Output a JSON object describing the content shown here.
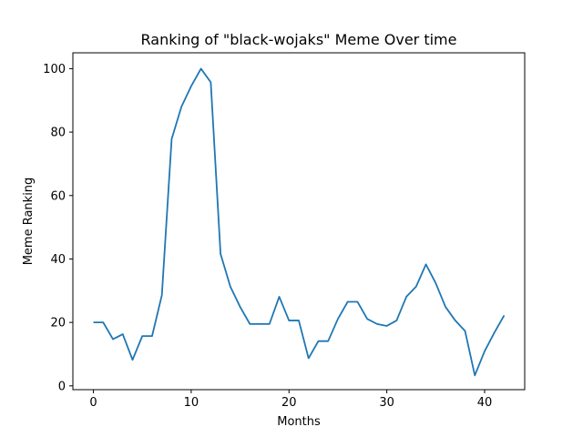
{
  "chart_data": {
    "type": "line",
    "title": "Ranking of \"black-wojaks\" Meme Over time",
    "xlabel": "Months",
    "ylabel": "Meme Ranking",
    "xlim": [
      -2.1,
      44.1
    ],
    "ylim": [
      -1.2,
      105.0
    ],
    "xticks": [
      0,
      10,
      20,
      30,
      40
    ],
    "yticks": [
      0,
      20,
      40,
      60,
      80,
      100
    ],
    "grid": false,
    "series": [
      {
        "color": "#1f77b4",
        "x": [
          0,
          1,
          2,
          3,
          4,
          5,
          6,
          7,
          8,
          9,
          10,
          11,
          12,
          13,
          14,
          15,
          16,
          17,
          18,
          19,
          20,
          21,
          22,
          23,
          24,
          25,
          26,
          27,
          28,
          29,
          30,
          31,
          32,
          33,
          34,
          35,
          36,
          37,
          38,
          39,
          40,
          41,
          42
        ],
        "y": [
          20,
          20,
          14.7,
          16.3,
          8.2,
          15.7,
          15.7,
          28.6,
          77.8,
          88,
          94.5,
          100,
          95.7,
          41.6,
          31.3,
          24.9,
          19.5,
          19.5,
          19.5,
          28.1,
          20.6,
          20.6,
          8.7,
          14.1,
          14.1,
          21.1,
          26.5,
          26.5,
          21.1,
          19.5,
          18.9,
          20.6,
          28.1,
          31.3,
          38.3,
          32.4,
          24.9,
          20.6,
          17.3,
          3.3,
          10.9,
          16.8,
          22.2
        ]
      }
    ]
  }
}
